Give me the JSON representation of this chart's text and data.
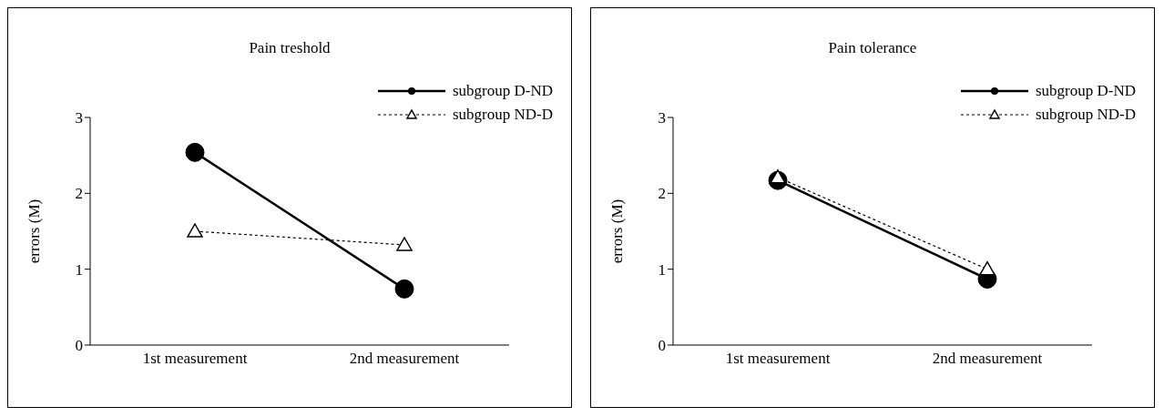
{
  "chart_data": [
    {
      "type": "line",
      "title": "Pain treshold",
      "ylabel": "errors (M)",
      "categories": [
        "1st measurement",
        "2nd measurement"
      ],
      "ylim": [
        0,
        3
      ],
      "yticks": [
        0,
        1,
        2,
        3
      ],
      "grid": false,
      "legend": "top right",
      "series": [
        {
          "name": "subgroup D-ND",
          "color": "#000000",
          "values": [
            2.54,
            0.74
          ],
          "marker": "circle",
          "line_style": "solid"
        },
        {
          "name": "subgroup ND-D",
          "color": "#000000",
          "values": [
            1.5,
            1.32
          ],
          "marker": "triangle",
          "line_style": "dotted"
        }
      ]
    },
    {
      "type": "line",
      "title": "Pain tolerance",
      "ylabel": "errors (M)",
      "categories": [
        "1st measurement",
        "2nd measurement"
      ],
      "ylim": [
        0,
        3
      ],
      "yticks": [
        0,
        1,
        2,
        3
      ],
      "grid": false,
      "legend": "top right",
      "series": [
        {
          "name": "subgroup D-ND",
          "color": "#000000",
          "values": [
            2.17,
            0.87
          ],
          "marker": "circle",
          "line_style": "solid"
        },
        {
          "name": "subgroup ND-D",
          "color": "#000000",
          "values": [
            2.21,
            1.0
          ],
          "marker": "triangle",
          "line_style": "dotted"
        }
      ]
    }
  ]
}
